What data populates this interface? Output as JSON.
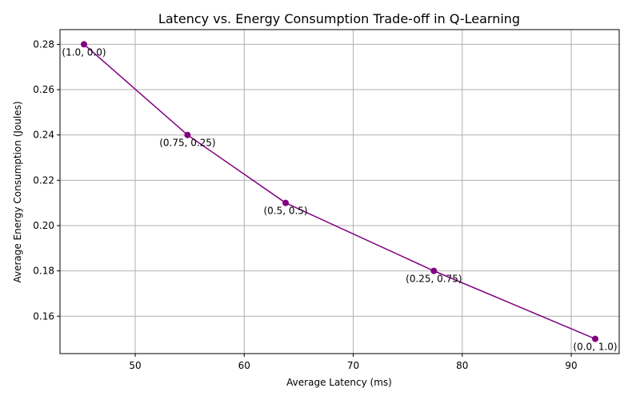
{
  "chart_data": {
    "type": "line",
    "title": "Latency vs. Energy Consumption Trade-off in Q-Learning",
    "xlabel": "Average Latency (ms)",
    "ylabel": "Average Energy Consumption (Joules)",
    "xlim": [
      43.1,
      94.4
    ],
    "ylim": [
      0.1435,
      0.2865
    ],
    "xticks": [
      50,
      60,
      70,
      80,
      90
    ],
    "yticks": [
      0.16,
      0.18,
      0.2,
      0.22,
      0.24,
      0.26,
      0.28
    ],
    "xtick_labels": [
      "50",
      "60",
      "70",
      "80",
      "90"
    ],
    "ytick_labels": [
      "0.16",
      "0.18",
      "0.20",
      "0.22",
      "0.24",
      "0.26",
      "0.28"
    ],
    "grid": true,
    "color": "#800080",
    "points": [
      {
        "x": 45.3,
        "y": 0.28,
        "label": "(1.0, 0.0)"
      },
      {
        "x": 54.8,
        "y": 0.24,
        "label": "(0.75, 0.25)"
      },
      {
        "x": 63.8,
        "y": 0.21,
        "label": "(0.5, 0.5)"
      },
      {
        "x": 77.4,
        "y": 0.18,
        "label": "(0.25, 0.75)"
      },
      {
        "x": 92.2,
        "y": 0.15,
        "label": "(0.0, 1.0)"
      }
    ]
  }
}
